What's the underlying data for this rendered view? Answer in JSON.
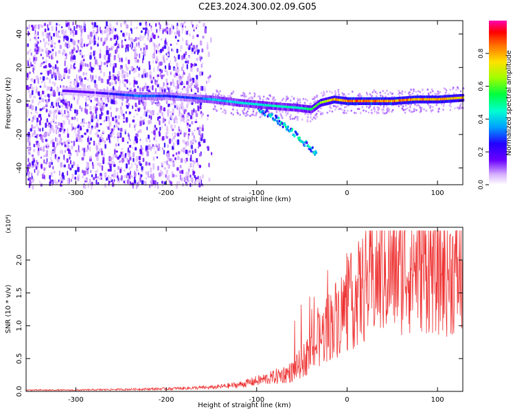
{
  "title": "C2E3.2024.300.02.09.G05",
  "chart_data": [
    {
      "type": "heatmap",
      "xlabel": "Height of straight line (km)",
      "ylabel": "Frequency (Hz)",
      "xlim": [
        -355,
        128
      ],
      "ylim": [
        -50,
        48
      ],
      "xticks": [
        -300,
        -200,
        -100,
        0,
        100
      ],
      "yticks": [
        -40,
        -20,
        0,
        20,
        40
      ],
      "colorbar": {
        "label": "Normalized spectral amplitude",
        "range": [
          0.0,
          1.0
        ],
        "ticks": [
          0.0,
          0.2,
          0.4,
          0.6,
          0.8
        ]
      },
      "ridge": [
        {
          "x": -310,
          "y": 6,
          "amp": 0.18
        },
        {
          "x": -280,
          "y": 5,
          "amp": 0.18
        },
        {
          "x": -255,
          "y": 4,
          "amp": 0.3
        },
        {
          "x": -230,
          "y": 3,
          "amp": 0.35
        },
        {
          "x": -200,
          "y": 3,
          "amp": 0.3
        },
        {
          "x": -175,
          "y": 2,
          "amp": 0.3
        },
        {
          "x": -150,
          "y": 1,
          "amp": 0.4
        },
        {
          "x": -120,
          "y": -1,
          "amp": 0.45
        },
        {
          "x": -100,
          "y": -2,
          "amp": 0.45
        },
        {
          "x": -80,
          "y": -3,
          "amp": 0.5
        },
        {
          "x": -55,
          "y": -4,
          "amp": 0.5
        },
        {
          "x": -40,
          "y": -5,
          "amp": 0.55
        },
        {
          "x": -30,
          "y": -1,
          "amp": 0.7
        },
        {
          "x": -15,
          "y": 1,
          "amp": 0.85
        },
        {
          "x": 0,
          "y": 0,
          "amp": 0.9
        },
        {
          "x": 25,
          "y": 0,
          "amp": 0.9
        },
        {
          "x": 50,
          "y": 0,
          "amp": 0.9
        },
        {
          "x": 75,
          "y": 1,
          "amp": 0.85
        },
        {
          "x": 100,
          "y": 1,
          "amp": 0.85
        },
        {
          "x": 128,
          "y": 2,
          "amp": 0.8
        }
      ],
      "branch": [
        {
          "x": -100,
          "y": -3
        },
        {
          "x": -85,
          "y": -8
        },
        {
          "x": -70,
          "y": -14
        },
        {
          "x": -55,
          "y": -20
        },
        {
          "x": -45,
          "y": -26
        },
        {
          "x": -35,
          "y": -30
        }
      ]
    },
    {
      "type": "line",
      "xlabel": "Height of straight line (km)",
      "ylabel": "SNR (10 * v/v)",
      "y_multiplier": "(x10⁴)",
      "xlim": [
        -355,
        128
      ],
      "ylim": [
        0,
        2.5
      ],
      "xticks": [
        -300,
        -200,
        -100,
        0,
        100
      ],
      "yticks": [
        0.0,
        0.5,
        1.0,
        1.5,
        2.0
      ],
      "color": "#ee3333",
      "envelope": {
        "x": [
          -355,
          -300,
          -250,
          -200,
          -150,
          -120,
          -100,
          -80,
          -60,
          -50,
          -40,
          -30,
          -20,
          -10,
          0,
          10,
          20,
          30,
          40,
          60,
          80,
          100,
          128
        ],
        "y": [
          0.02,
          0.02,
          0.03,
          0.04,
          0.06,
          0.1,
          0.16,
          0.22,
          0.3,
          0.45,
          0.6,
          0.8,
          1.0,
          1.15,
          1.3,
          1.45,
          1.6,
          1.7,
          1.8,
          1.85,
          1.95,
          1.85,
          1.8
        ]
      }
    }
  ]
}
